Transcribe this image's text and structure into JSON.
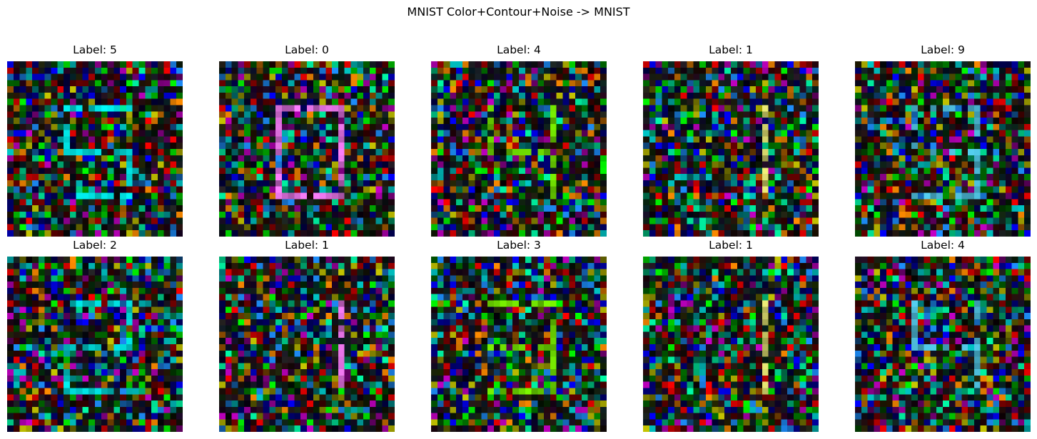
{
  "figure": {
    "title": "MNIST Color+Contour+Noise -> MNIST",
    "panels": [
      {
        "title": "Label: 5",
        "digit": "5"
      },
      {
        "title": "Label: 0",
        "digit": "0"
      },
      {
        "title": "Label: 4",
        "digit": "4"
      },
      {
        "title": "Label: 1",
        "digit": "1"
      },
      {
        "title": "Label: 9",
        "digit": "9"
      },
      {
        "title": "Label: 2",
        "digit": "2"
      },
      {
        "title": "Label: 1",
        "digit": "1"
      },
      {
        "title": "Label: 3",
        "digit": "3"
      },
      {
        "title": "Label: 1",
        "digit": "1"
      },
      {
        "title": "Label: 4",
        "digit": "4"
      }
    ]
  }
}
